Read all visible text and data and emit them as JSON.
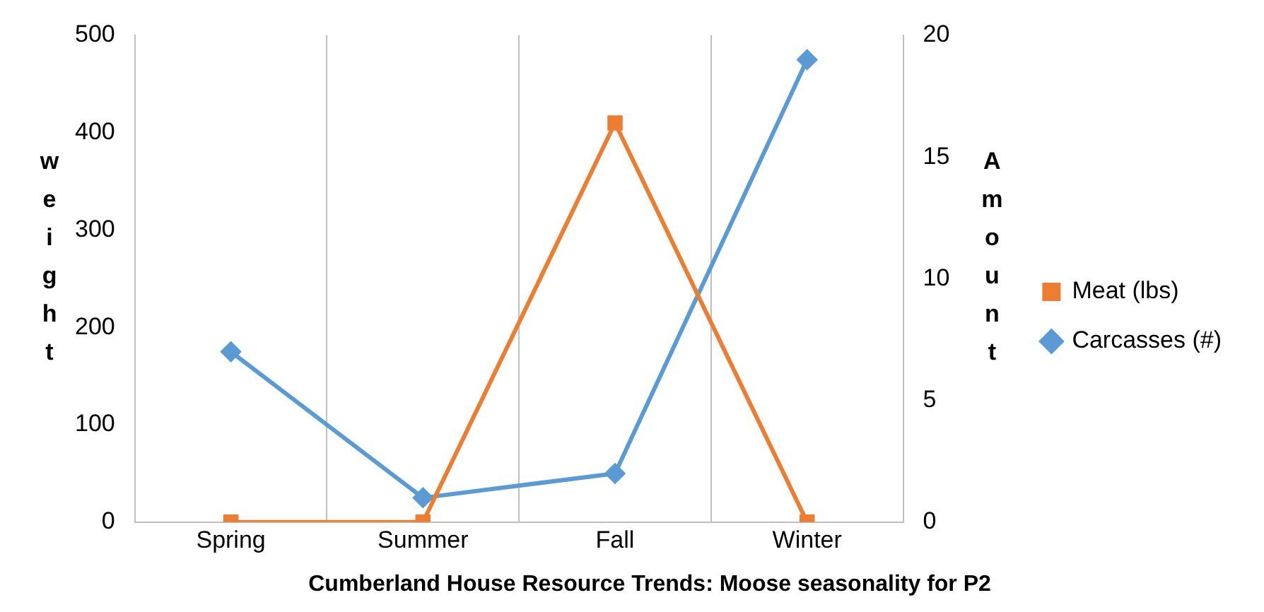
{
  "chart_data": {
    "type": "line",
    "title": "Cumberland House Resource Trends: Moose seasonality for P2",
    "ylabel": "weight",
    "y2label": "Amount",
    "categories": [
      "Spring",
      "Summer",
      "Fall",
      "Winter"
    ],
    "series": [
      {
        "name": "Meat (lbs)",
        "color": "#ed7d31",
        "values": [
          0,
          0,
          410,
          0
        ],
        "marker": "square"
      },
      {
        "name": "Carcasses (#)",
        "color": "#5b9bd5",
        "values": [
          7,
          1,
          2,
          19
        ],
        "marker": "diamond",
        "axis": "y2"
      }
    ],
    "ylim": [
      0,
      500
    ],
    "yticks": [
      0,
      100,
      200,
      300,
      400,
      500
    ],
    "y2lim": [
      0,
      20
    ],
    "y2ticks": [
      0,
      5,
      10,
      15,
      20
    ],
    "grid": "x",
    "legend": "right",
    "line_style": "solid"
  }
}
